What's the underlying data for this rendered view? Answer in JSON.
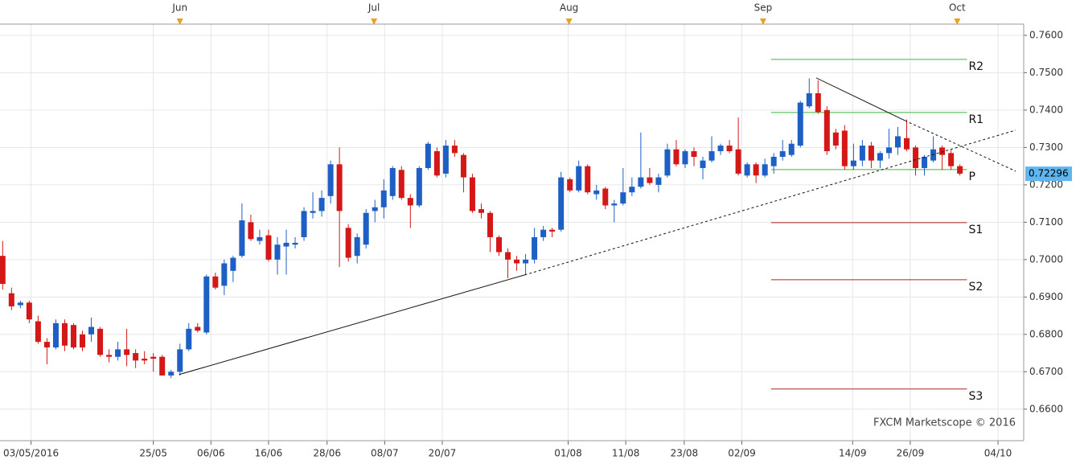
{
  "chart_data": {
    "type": "candlestick",
    "up_color": "#1d5fc4",
    "down_color": "#d41717",
    "open": [
      0.701,
      0.691,
      0.6878,
      0.6885,
      0.6835,
      0.678,
      0.6765,
      0.683,
      0.6825,
      0.68,
      0.68,
      0.6815,
      0.6745,
      0.674,
      0.676,
      0.675,
      0.6735,
      0.674,
      0.674,
      0.669,
      0.67,
      0.676,
      0.682,
      0.6805,
      0.6955,
      0.693,
      0.697,
      0.701,
      0.71,
      0.705,
      0.7065,
      0.7,
      0.7035,
      0.704,
      0.706,
      0.7125,
      0.713,
      0.717,
      0.7255,
      0.7085,
      0.701,
      0.704,
      0.713,
      0.714,
      0.717,
      0.724,
      0.7165,
      0.7145,
      0.7245,
      0.729,
      0.723,
      0.7305,
      0.728,
      0.722,
      0.7135,
      0.7125,
      0.706,
      0.702,
      0.7,
      0.699,
      0.7,
      0.706,
      0.708,
      0.708,
      0.7215,
      0.7185,
      0.725,
      0.7175,
      0.719,
      0.7145,
      0.715,
      0.718,
      0.7195,
      0.722,
      0.72,
      0.7225,
      0.7295,
      0.7255,
      0.729,
      0.7245,
      0.7265,
      0.729,
      0.7305,
      0.7295,
      0.7225,
      0.7255,
      0.7225,
      0.725,
      0.7275,
      0.728,
      0.7305,
      0.741,
      0.7445,
      0.74,
      0.734,
      0.7345,
      0.725,
      0.7265,
      0.7305,
      0.7265,
      0.7285,
      0.73,
      0.7325,
      0.73,
      0.7245,
      0.7265,
      0.73,
      0.7285,
      0.725
    ],
    "high": [
      0.705,
      0.6925,
      0.689,
      0.689,
      0.685,
      0.679,
      0.684,
      0.684,
      0.683,
      0.681,
      0.6845,
      0.682,
      0.676,
      0.678,
      0.6815,
      0.676,
      0.6755,
      0.675,
      0.6745,
      0.6705,
      0.6775,
      0.683,
      0.683,
      0.696,
      0.6965,
      0.7,
      0.701,
      0.715,
      0.712,
      0.708,
      0.708,
      0.706,
      0.708,
      0.706,
      0.714,
      0.718,
      0.7185,
      0.7265,
      0.73,
      0.7095,
      0.707,
      0.7135,
      0.716,
      0.7215,
      0.725,
      0.725,
      0.7175,
      0.725,
      0.7315,
      0.73,
      0.732,
      0.732,
      0.7285,
      0.723,
      0.715,
      0.713,
      0.7065,
      0.703,
      0.701,
      0.7015,
      0.7085,
      0.709,
      0.7085,
      0.7235,
      0.722,
      0.7265,
      0.7255,
      0.72,
      0.7195,
      0.716,
      0.7245,
      0.722,
      0.734,
      0.7245,
      0.723,
      0.731,
      0.732,
      0.7295,
      0.73,
      0.7275,
      0.733,
      0.731,
      0.732,
      0.738,
      0.726,
      0.726,
      0.727,
      0.7285,
      0.732,
      0.732,
      0.7425,
      0.7485,
      0.748,
      0.741,
      0.735,
      0.736,
      0.731,
      0.732,
      0.7315,
      0.729,
      0.735,
      0.7355,
      0.7375,
      0.7305,
      0.728,
      0.733,
      0.7305,
      0.7295,
      0.7255
    ],
    "low": [
      0.692,
      0.6865,
      0.687,
      0.683,
      0.6775,
      0.672,
      0.676,
      0.6755,
      0.676,
      0.6755,
      0.678,
      0.674,
      0.6725,
      0.673,
      0.6715,
      0.671,
      0.672,
      0.67,
      0.669,
      0.6683,
      0.669,
      0.6755,
      0.6805,
      0.68,
      0.692,
      0.6905,
      0.694,
      0.7005,
      0.705,
      0.704,
      0.6995,
      0.696,
      0.696,
      0.703,
      0.705,
      0.711,
      0.7115,
      0.715,
      0.698,
      0.6995,
      0.699,
      0.703,
      0.71,
      0.711,
      0.716,
      0.716,
      0.7085,
      0.714,
      0.724,
      0.722,
      0.722,
      0.7275,
      0.718,
      0.7125,
      0.711,
      0.702,
      0.701,
      0.695,
      0.697,
      0.696,
      0.699,
      0.705,
      0.706,
      0.7075,
      0.718,
      0.718,
      0.7175,
      0.716,
      0.7135,
      0.71,
      0.7145,
      0.717,
      0.719,
      0.72,
      0.718,
      0.722,
      0.725,
      0.7245,
      0.725,
      0.7215,
      0.726,
      0.728,
      0.7285,
      0.7225,
      0.722,
      0.7205,
      0.722,
      0.723,
      0.7265,
      0.7275,
      0.73,
      0.7405,
      0.739,
      0.728,
      0.7295,
      0.724,
      0.724,
      0.725,
      0.7245,
      0.7245,
      0.727,
      0.728,
      0.729,
      0.7225,
      0.7225,
      0.726,
      0.724,
      0.724,
      0.7225
    ],
    "close": [
      0.6935,
      0.6875,
      0.6885,
      0.684,
      0.678,
      0.6765,
      0.683,
      0.677,
      0.6765,
      0.6765,
      0.682,
      0.6745,
      0.674,
      0.676,
      0.6745,
      0.673,
      0.673,
      0.6735,
      0.669,
      0.67,
      0.676,
      0.6815,
      0.681,
      0.6955,
      0.6925,
      0.699,
      0.7005,
      0.7105,
      0.7055,
      0.706,
      0.7,
      0.704,
      0.7045,
      0.7045,
      0.713,
      0.713,
      0.7165,
      0.7255,
      0.713,
      0.7005,
      0.706,
      0.7125,
      0.714,
      0.7185,
      0.7245,
      0.7165,
      0.7145,
      0.7245,
      0.731,
      0.7225,
      0.7305,
      0.7285,
      0.722,
      0.713,
      0.7125,
      0.706,
      0.702,
      0.7,
      0.699,
      0.7,
      0.706,
      0.708,
      0.7075,
      0.722,
      0.7185,
      0.725,
      0.718,
      0.7185,
      0.7145,
      0.715,
      0.718,
      0.7195,
      0.722,
      0.7205,
      0.722,
      0.7295,
      0.7255,
      0.729,
      0.7275,
      0.7265,
      0.729,
      0.7305,
      0.729,
      0.723,
      0.7255,
      0.7225,
      0.7255,
      0.7275,
      0.729,
      0.731,
      0.742,
      0.7445,
      0.7395,
      0.729,
      0.7305,
      0.725,
      0.7265,
      0.7305,
      0.7265,
      0.7285,
      0.73,
      0.733,
      0.7295,
      0.7245,
      0.7275,
      0.7295,
      0.728,
      0.725,
      0.723
    ],
    "xlim": [
      -0.3,
      115.2
    ],
    "ylim": [
      0.65156,
      0.763
    ],
    "yticks": [
      {
        "value": 0.66,
        "label": "0.6600"
      },
      {
        "value": 0.67,
        "label": "0.6700"
      },
      {
        "value": 0.68,
        "label": "0.6800"
      },
      {
        "value": 0.69,
        "label": "0.6900"
      },
      {
        "value": 0.7,
        "label": "0.7000"
      },
      {
        "value": 0.71,
        "label": "0.7100"
      },
      {
        "value": 0.72,
        "label": "0.7200"
      },
      {
        "value": 0.73,
        "label": "0.7300"
      },
      {
        "value": 0.74,
        "label": "0.7400"
      },
      {
        "value": 0.75,
        "label": "0.7500"
      },
      {
        "value": 0.76,
        "label": "0.7600"
      }
    ],
    "xticks": [
      {
        "value": 3.2,
        "label": "03/05/2016"
      },
      {
        "value": 17,
        "label": "25/05"
      },
      {
        "value": 23.5,
        "label": "06/06"
      },
      {
        "value": 30,
        "label": "16/06"
      },
      {
        "value": 36.6,
        "label": "28/06"
      },
      {
        "value": 43.1,
        "label": "08/07"
      },
      {
        "value": 49.6,
        "label": "20/07"
      },
      {
        "value": 63.8,
        "label": "01/08"
      },
      {
        "value": 70.3,
        "label": "11/08"
      },
      {
        "value": 76.9,
        "label": "23/08"
      },
      {
        "value": 83.4,
        "label": "02/09"
      },
      {
        "value": 95.9,
        "label": "14/09"
      },
      {
        "value": 102.4,
        "label": "26/09"
      },
      {
        "value": 112.3,
        "label": "04/10"
      }
    ],
    "month_markers": [
      {
        "value": 20,
        "label": "Jun"
      },
      {
        "value": 41.9,
        "label": "Jul"
      },
      {
        "value": 63.9,
        "label": "Aug"
      },
      {
        "value": 85.8,
        "label": "Sep"
      },
      {
        "value": 107.7,
        "label": "Oct"
      }
    ],
    "grid": true,
    "current_price": 0.72296,
    "current_price_label": "0.72296",
    "levels": [
      {
        "label": "R2",
        "value": 0.75355,
        "color": "#3cb83c",
        "start": 86.7,
        "end": 108.8
      },
      {
        "label": "R1",
        "value": 0.73935,
        "color": "#3cb83c",
        "start": 86.7,
        "end": 108.8
      },
      {
        "label": "P",
        "value": 0.72409,
        "color": "#3cb83c",
        "start": 86.7,
        "end": 108.8
      },
      {
        "label": "S1",
        "value": 0.70989,
        "color": "#b02424",
        "start": 86.7,
        "end": 108.8
      },
      {
        "label": "S2",
        "value": 0.69462,
        "color": "#b02424",
        "start": 86.7,
        "end": 108.8
      },
      {
        "label": "S3",
        "value": 0.66538,
        "color": "#b02424",
        "start": 86.7,
        "end": 108.8
      }
    ],
    "trendlines": [
      {
        "style": "solid",
        "points": [
          [
            19.9,
            0.66925
          ],
          [
            58.9,
            0.69591
          ]
        ]
      },
      {
        "style": "dashed",
        "points": [
          [
            58.9,
            0.69591
          ],
          [
            114.3,
            0.73462
          ]
        ]
      },
      {
        "style": "solid",
        "points": [
          [
            91.8,
            0.7486
          ],
          [
            101.8,
            0.7372
          ]
        ]
      },
      {
        "style": "dashed",
        "points": [
          [
            101.8,
            0.7372
          ],
          [
            114.3,
            0.72366
          ]
        ]
      }
    ],
    "watermark": "FXCM Marketscope © 2016"
  }
}
